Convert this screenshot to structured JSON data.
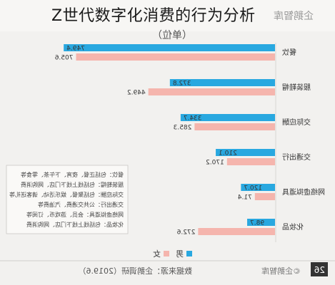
{
  "page": {
    "title": "Z世代数字化消费的行为分析"
  },
  "header": {
    "brand_mirrored": "企鹅智库",
    "unit_label": "（单位）",
    "watermark": "©企鹅智库"
  },
  "footer": {
    "source_text": "数据来源：企鹅调研（2019.6）",
    "page_number": "26"
  },
  "notes": [
    "餐饮：包括正餐、夜宵、下午茶、零食等",
    "服装鞋帽：包括线上线下门店、网购消费",
    "交际应酬：包括聚餐、娱乐活动、请客送礼等",
    "交通出行：公共交通费、汽油费等",
    "网络虚拟道具：会员、游戏币、订阅等",
    "化妆品：包括线上线下门店、网购消费"
  ],
  "colors": {
    "male": "#29a8e0",
    "female": "#f5b5ad",
    "background": "#f2f1ef",
    "grid": "#e0dedb"
  },
  "chart_data": {
    "type": "bar",
    "orientation": "horizontal",
    "categories": [
      "餐饮",
      "服装鞋帽",
      "交际应酬",
      "交通出行",
      "网络虚拟道具",
      "化妆品"
    ],
    "series": [
      {
        "name": "男",
        "values": [
          749.4,
          372.8,
          334.7,
          210.1,
          120.7,
          98.7
        ]
      },
      {
        "name": "女",
        "values": [
          705.6,
          449.2,
          285.3,
          170.2,
          71.4,
          272.6
        ]
      }
    ],
    "value_labels": {
      "男": [
        "749.4",
        "372.8",
        "334.7",
        "210.1",
        "120.7",
        "98.7"
      ],
      "女": [
        "705.6",
        "449.2",
        "285.3",
        "170.2",
        "71.4",
        "272.6"
      ]
    },
    "xlim": [
      0,
      760
    ],
    "legend_position": "bottom",
    "mirrored": true
  }
}
